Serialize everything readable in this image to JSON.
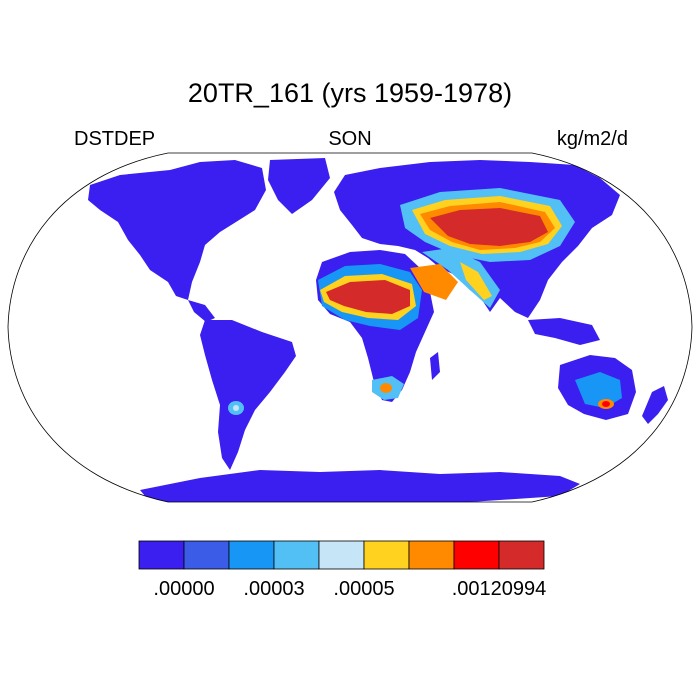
{
  "title": "20TR_161 (yrs 1959-1978)",
  "left_label": "DSTDEP",
  "center_label": "SON",
  "units": "kg/m2/d",
  "colorbar": {
    "colors": [
      "#3b1ef0",
      "#3a5ce6",
      "#1896f5",
      "#52c0f5",
      "#c6e6f7",
      "#ffd21f",
      "#ff8a00",
      "#ff0000",
      "#d52a2a"
    ],
    "labels": [
      {
        "text": ".00000",
        "boundary": 1
      },
      {
        "text": ".00003",
        "boundary": 3
      },
      {
        "text": ".00005",
        "boundary": 5
      },
      {
        "text": ".00120994",
        "boundary": 8
      }
    ]
  },
  "colors": {
    "ocean": "#ffffff",
    "land_low": "#3b1ef0",
    "outline": "#000000"
  }
}
